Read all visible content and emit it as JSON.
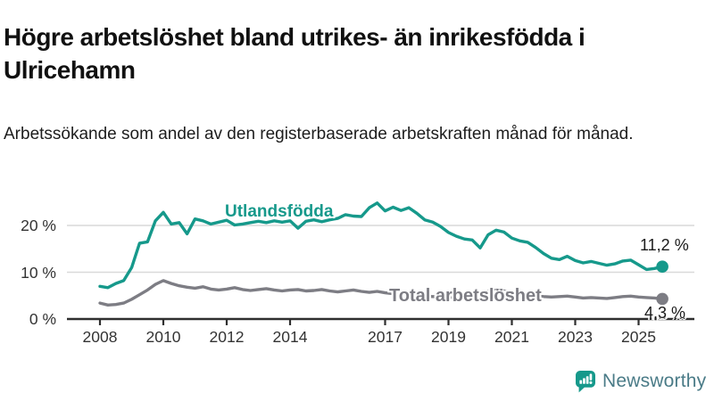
{
  "title": "Högre arbetslöshet bland utrikes- än inrikesfödda i Ulricehamn",
  "subtitle": "Arbetssökande som andel av den registerbaserade arbetskraften månad för månad.",
  "colors": {
    "accent_teal": "#16998B",
    "series_gray": "#7D7D84",
    "grid": "#D9D9D9",
    "axis": "#2F2F2F",
    "title_text": "#111111",
    "tick_text": "#333333",
    "logo_text": "#4A7B87"
  },
  "chart_data": {
    "type": "line",
    "title": "",
    "xlabel": "",
    "ylabel": "",
    "x_unit": "year (quarterly samples)",
    "grid": "horizontal",
    "legend_position": "inline-labels",
    "xlim": [
      2008,
      2025.75
    ],
    "ylim": [
      0,
      26
    ],
    "x": [
      2008,
      2008.25,
      2008.5,
      2008.75,
      2009,
      2009.25,
      2009.5,
      2009.75,
      2010,
      2010.25,
      2010.5,
      2010.75,
      2011,
      2011.25,
      2011.5,
      2011.75,
      2012,
      2012.25,
      2012.5,
      2012.75,
      2013,
      2013.25,
      2013.5,
      2013.75,
      2014,
      2014.25,
      2014.5,
      2014.75,
      2015,
      2015.25,
      2015.5,
      2015.75,
      2016,
      2016.25,
      2016.5,
      2016.75,
      2017,
      2017.25,
      2017.5,
      2017.75,
      2018,
      2018.25,
      2018.5,
      2018.75,
      2019,
      2019.25,
      2019.5,
      2019.75,
      2020,
      2020.25,
      2020.5,
      2020.75,
      2021,
      2021.25,
      2021.5,
      2021.75,
      2022,
      2022.25,
      2022.5,
      2022.75,
      2023,
      2023.25,
      2023.5,
      2023.75,
      2024,
      2024.25,
      2024.5,
      2024.75,
      2025,
      2025.25,
      2025.5,
      2025.75
    ],
    "series": [
      {
        "name": "Utlandsfödda",
        "color": "#16998B",
        "end_label": "11,2 %",
        "end_value": 11.2,
        "values": [
          7.0,
          6.7,
          7.6,
          8.2,
          11.0,
          16.2,
          16.5,
          21.0,
          22.8,
          20.3,
          20.6,
          18.2,
          21.4,
          21.0,
          20.3,
          20.7,
          21.1,
          20.1,
          20.3,
          20.6,
          20.9,
          20.6,
          21.0,
          20.7,
          21.0,
          19.4,
          20.9,
          21.2,
          20.8,
          21.2,
          21.5,
          22.3,
          22.0,
          21.9,
          23.8,
          24.8,
          23.1,
          23.9,
          23.2,
          23.8,
          22.6,
          21.2,
          20.7,
          19.8,
          18.5,
          17.7,
          17.1,
          16.9,
          15.2,
          18.0,
          19.0,
          18.6,
          17.3,
          16.7,
          16.4,
          15.3,
          14.0,
          13.0,
          12.7,
          13.4,
          12.5,
          12.0,
          12.3,
          11.9,
          11.5,
          11.8,
          12.4,
          12.6,
          11.6,
          10.6,
          10.8,
          11.2
        ]
      },
      {
        "name": "Total arbetslöshet",
        "color": "#7D7D84",
        "end_label": "4,3 %",
        "end_value": 4.3,
        "values": [
          3.4,
          3.0,
          3.1,
          3.4,
          4.2,
          5.2,
          6.2,
          7.4,
          8.2,
          7.6,
          7.1,
          6.8,
          6.6,
          6.9,
          6.4,
          6.2,
          6.4,
          6.7,
          6.3,
          6.1,
          6.3,
          6.5,
          6.2,
          6.0,
          6.2,
          6.3,
          6.0,
          6.1,
          6.3,
          6.0,
          5.8,
          6.0,
          6.2,
          5.9,
          5.7,
          5.9,
          5.6,
          5.4,
          5.2,
          5.1,
          5.0,
          4.9,
          4.8,
          4.8,
          4.7,
          4.6,
          4.7,
          4.8,
          5.2,
          6.0,
          6.2,
          6.0,
          5.8,
          5.5,
          5.2,
          5.0,
          4.8,
          4.7,
          4.8,
          4.9,
          4.7,
          4.5,
          4.6,
          4.5,
          4.4,
          4.6,
          4.8,
          4.9,
          4.7,
          4.6,
          4.5,
          4.3
        ]
      }
    ],
    "yticks": [
      {
        "label": "0 %",
        "value": 0
      },
      {
        "label": "10 %",
        "value": 10
      },
      {
        "label": "20 %",
        "value": 20
      }
    ],
    "xticks": [
      {
        "label": "2008",
        "value": 2008
      },
      {
        "label": "2010",
        "value": 2010
      },
      {
        "label": "2012",
        "value": 2012
      },
      {
        "label": "2014",
        "value": 2014
      },
      {
        "label": "2017",
        "value": 2017
      },
      {
        "label": "2019",
        "value": 2019
      },
      {
        "label": "2021",
        "value": 2021
      },
      {
        "label": "2023",
        "value": 2023
      },
      {
        "label": "2025",
        "value": 2025
      }
    ]
  },
  "branding": {
    "logo_text": "Newsworthy",
    "logo_icon": "speech-bubble-bar-chart-exclamation"
  }
}
